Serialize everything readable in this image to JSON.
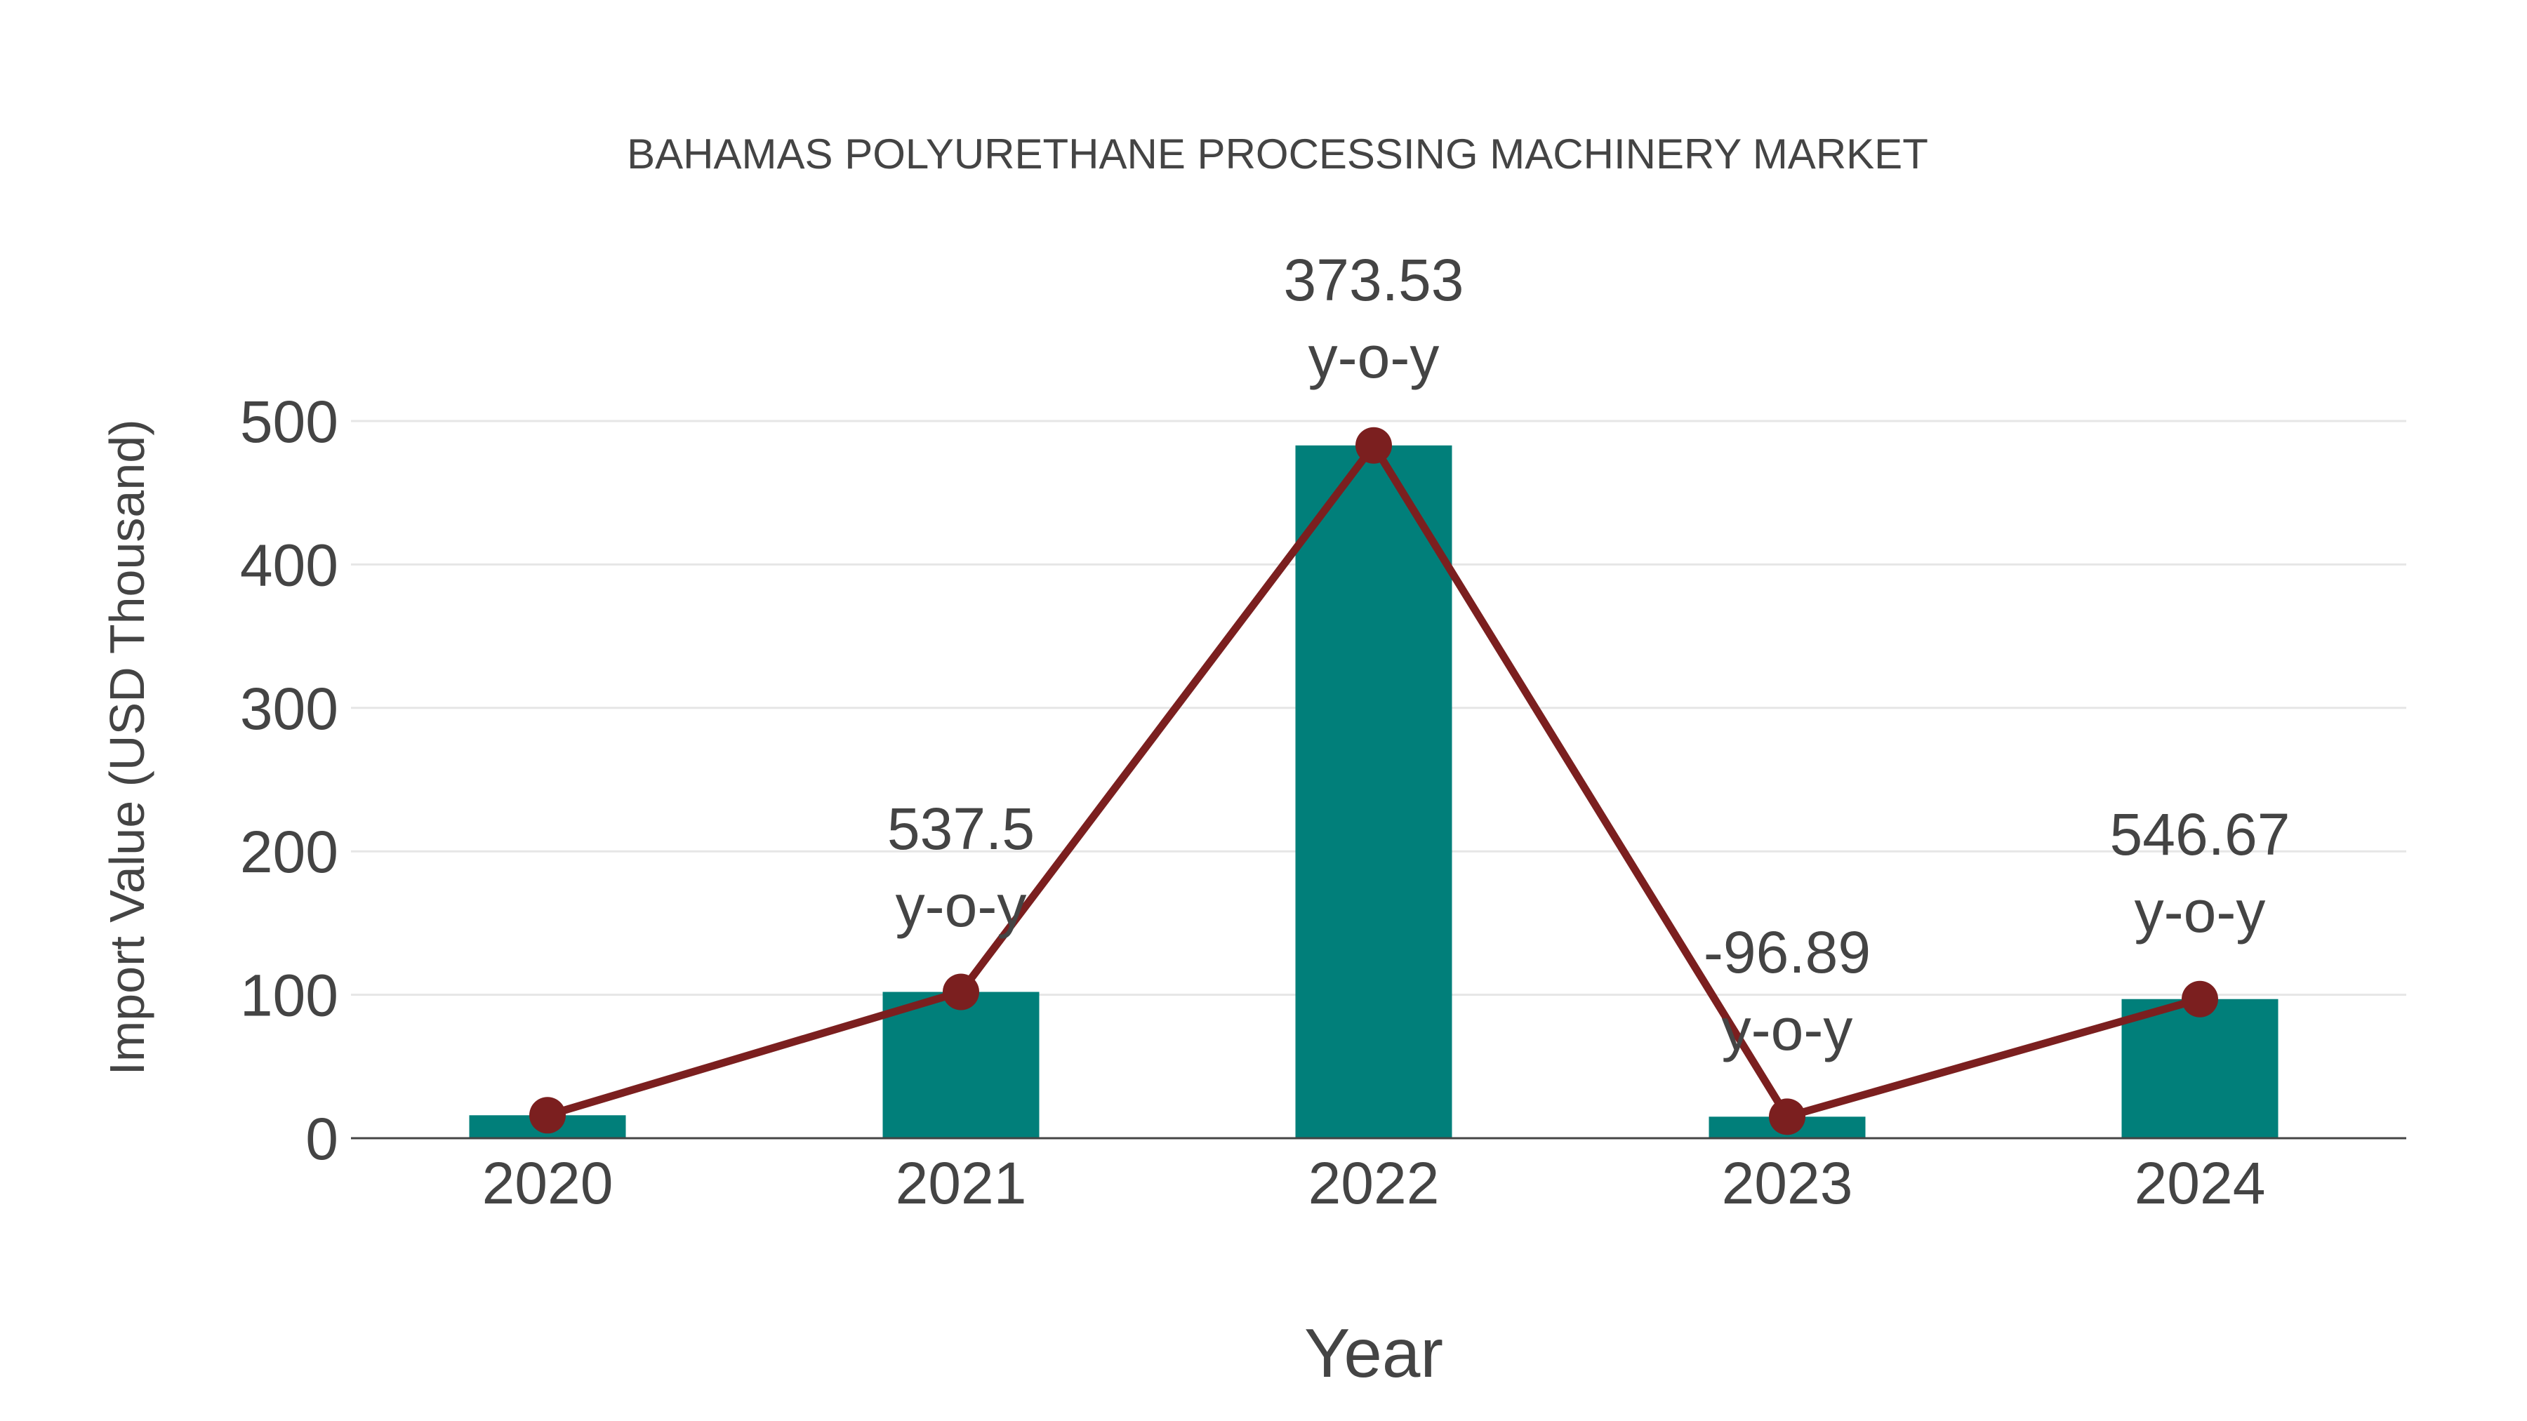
{
  "chart_data": {
    "type": "bar",
    "title": "BAHAMAS POLYURETHANE PROCESSING MACHINERY MARKET",
    "xlabel": "Year",
    "ylabel": "Import Value (USD Thousand)",
    "categories": [
      "2020",
      "2021",
      "2022",
      "2023",
      "2024"
    ],
    "series": [
      {
        "name": "Import Value",
        "type": "bar",
        "color": "#017f7a",
        "values": [
          16,
          102,
          483,
          15,
          97
        ]
      },
      {
        "name": "Trend",
        "type": "line",
        "color": "#7b1f1f",
        "values": [
          16,
          102,
          483,
          15,
          97
        ]
      }
    ],
    "annotations": [
      {
        "category": "2021",
        "value": "537.5",
        "suffix": "y-o-y"
      },
      {
        "category": "2022",
        "value": "373.53",
        "suffix": "y-o-y"
      },
      {
        "category": "2023",
        "value": "-96.89",
        "suffix": "y-o-y"
      },
      {
        "category": "2024",
        "value": "546.67",
        "suffix": "y-o-y"
      }
    ],
    "yticks": [
      "0",
      "100",
      "200",
      "300",
      "400",
      "500"
    ],
    "ylim": [
      0,
      540
    ],
    "grid": true,
    "legend": "none"
  }
}
